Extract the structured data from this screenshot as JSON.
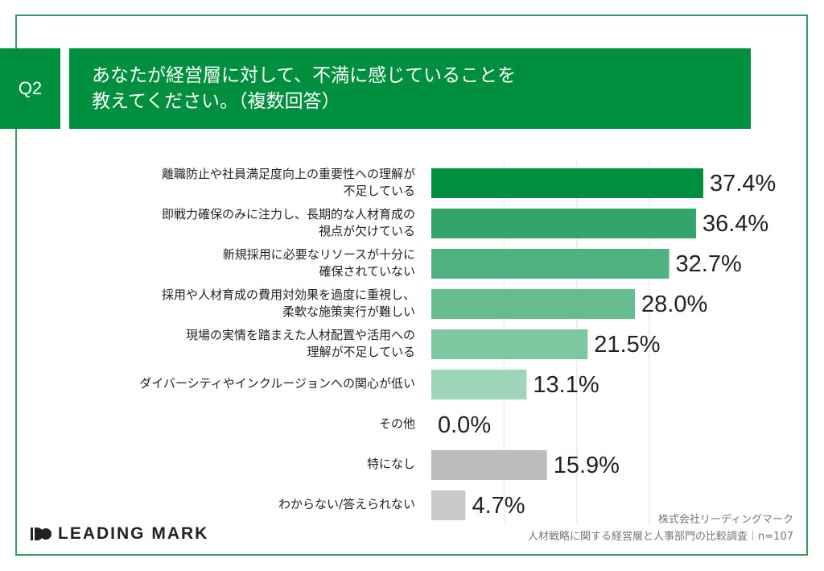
{
  "header": {
    "q_label": "Q2",
    "title": "あなたが経営層に対して、不満に感じていることを\n教えてください。（複数回答）"
  },
  "colors": {
    "brand": "#008f3f",
    "bars": [
      "#008f3f",
      "#34a56a",
      "#50b27e",
      "#67bc8f",
      "#7ec8a0",
      "#9dd5b6",
      "#9dd5b6",
      "#bdbdbd",
      "#c9c9c9"
    ]
  },
  "chart_data": {
    "type": "bar",
    "orientation": "horizontal",
    "categories": [
      "離職防止や社員満足度向上の重要性への理解が\n不足している",
      "即戦力確保のみに注力し、長期的な人材育成の\n視点が欠けている",
      "新規採用に必要なリソースが十分に\n確保されていない",
      "採用や人材育成の費用対効果を過度に重視し、\n柔軟な施策実行が難しい",
      "現場の実情を踏まえた人材配置や活用への\n理解が不足している",
      "ダイバーシティやインクルージョンへの関心が低い",
      "その他",
      "特になし",
      "わからない/答えられない"
    ],
    "values": [
      37.4,
      36.4,
      32.7,
      28.0,
      21.5,
      13.1,
      0.0,
      15.9,
      4.7
    ],
    "value_labels": [
      "37.4%",
      "36.4%",
      "32.7%",
      "28.0%",
      "21.5%",
      "13.1%",
      "0.0%",
      "15.9%",
      "4.7%"
    ],
    "xlim": [
      0,
      40
    ],
    "grid": true,
    "grid_step": 10
  },
  "footer": {
    "logo_text": "LEADING MARK",
    "company": "株式会社リーディングマーク",
    "survey": "人材戦略に関する経営層と人事部門の比較調査｜n=107"
  }
}
